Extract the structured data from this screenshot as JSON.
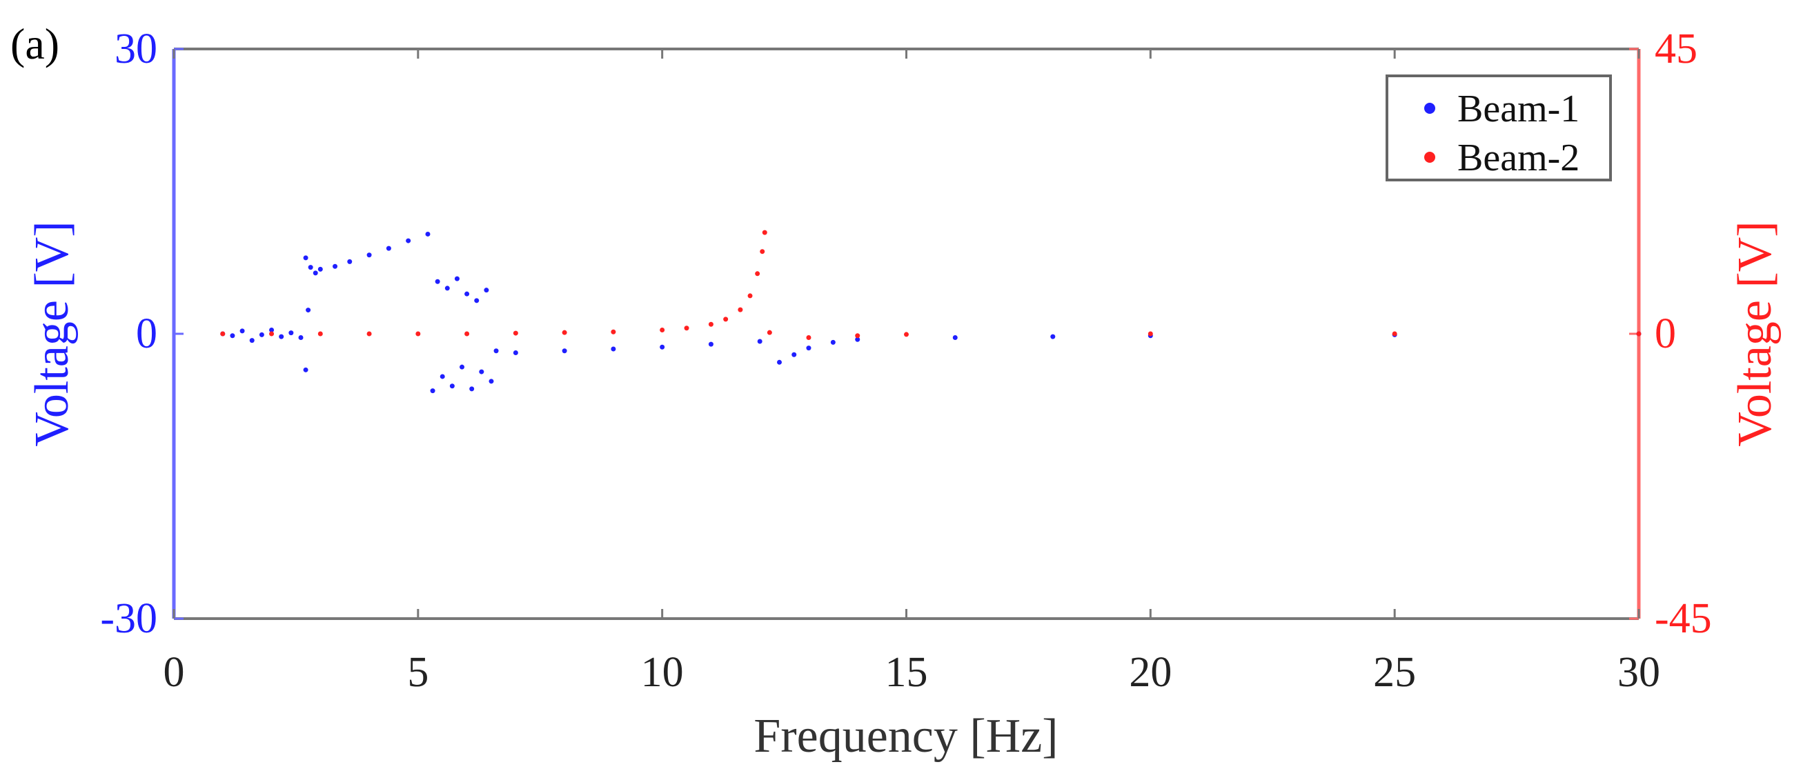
{
  "panel_label": "(a)",
  "chart_data": {
    "type": "scatter",
    "title": "",
    "xlabel": "Frequency [Hz]",
    "ylabel_left": "Voltage [V]",
    "ylabel_right": "Voltage [V]",
    "xlim": [
      0,
      30
    ],
    "ylim_left": [
      -30,
      30
    ],
    "ylim_right": [
      -45,
      45
    ],
    "x_ticks": [
      "0",
      "5",
      "10",
      "15",
      "20",
      "25",
      "30"
    ],
    "y_ticks_left": [
      "30",
      "0",
      "-30"
    ],
    "y_ticks_right": [
      "45",
      "0",
      "-45"
    ],
    "grid": false,
    "legend_position": "top-right",
    "colors": {
      "beam1": "#1f1fff",
      "beam2": "#ff2020",
      "x_axis": "#777777",
      "left_axis": "#6a6aff",
      "right_axis": "#ff6a6a"
    },
    "series": [
      {
        "name": "Beam-1",
        "axis": "left",
        "color": "#1f1fff",
        "points": [
          {
            "x": 1.0,
            "y": 0.0
          },
          {
            "x": 1.2,
            "y": -0.2
          },
          {
            "x": 1.4,
            "y": 0.3
          },
          {
            "x": 1.6,
            "y": -0.7
          },
          {
            "x": 1.8,
            "y": -0.1
          },
          {
            "x": 2.0,
            "y": 0.4
          },
          {
            "x": 2.2,
            "y": -0.3
          },
          {
            "x": 2.4,
            "y": 0.1
          },
          {
            "x": 2.6,
            "y": -0.4
          },
          {
            "x": 2.7,
            "y": -3.8
          },
          {
            "x": 2.7,
            "y": 8.0
          },
          {
            "x": 2.75,
            "y": 2.5
          },
          {
            "x": 2.8,
            "y": 7.0
          },
          {
            "x": 2.9,
            "y": 6.4
          },
          {
            "x": 3.0,
            "y": 6.8
          },
          {
            "x": 3.3,
            "y": 7.1
          },
          {
            "x": 3.6,
            "y": 7.6
          },
          {
            "x": 4.0,
            "y": 8.3
          },
          {
            "x": 4.4,
            "y": 9.0
          },
          {
            "x": 4.8,
            "y": 9.8
          },
          {
            "x": 5.2,
            "y": 10.5
          },
          {
            "x": 5.3,
            "y": -6.0
          },
          {
            "x": 5.4,
            "y": 5.5
          },
          {
            "x": 5.5,
            "y": -4.5
          },
          {
            "x": 5.6,
            "y": 4.8
          },
          {
            "x": 5.7,
            "y": -5.5
          },
          {
            "x": 5.8,
            "y": 5.8
          },
          {
            "x": 5.9,
            "y": -3.5
          },
          {
            "x": 6.0,
            "y": 4.2
          },
          {
            "x": 6.1,
            "y": -5.8
          },
          {
            "x": 6.2,
            "y": 3.5
          },
          {
            "x": 6.3,
            "y": -4.0
          },
          {
            "x": 6.4,
            "y": 4.6
          },
          {
            "x": 6.5,
            "y": -5.0
          },
          {
            "x": 6.6,
            "y": -1.8
          },
          {
            "x": 7.0,
            "y": -2.0
          },
          {
            "x": 8.0,
            "y": -1.8
          },
          {
            "x": 9.0,
            "y": -1.6
          },
          {
            "x": 10.0,
            "y": -1.4
          },
          {
            "x": 11.0,
            "y": -1.1
          },
          {
            "x": 12.0,
            "y": -0.8
          },
          {
            "x": 12.4,
            "y": -3.0
          },
          {
            "x": 12.7,
            "y": -2.2
          },
          {
            "x": 13.0,
            "y": -1.5
          },
          {
            "x": 13.5,
            "y": -0.9
          },
          {
            "x": 14.0,
            "y": -0.6
          },
          {
            "x": 16.0,
            "y": -0.4
          },
          {
            "x": 18.0,
            "y": -0.3
          },
          {
            "x": 20.0,
            "y": -0.2
          },
          {
            "x": 25.0,
            "y": -0.1
          },
          {
            "x": 30.0,
            "y": 0.0
          }
        ]
      },
      {
        "name": "Beam-2",
        "axis": "right",
        "color": "#ff2020",
        "points": [
          {
            "x": 1.0,
            "y": 0.0
          },
          {
            "x": 2.0,
            "y": 0.0
          },
          {
            "x": 3.0,
            "y": 0.0
          },
          {
            "x": 4.0,
            "y": 0.0
          },
          {
            "x": 5.0,
            "y": 0.0
          },
          {
            "x": 6.0,
            "y": 0.0
          },
          {
            "x": 7.0,
            "y": 0.1
          },
          {
            "x": 8.0,
            "y": 0.2
          },
          {
            "x": 9.0,
            "y": 0.3
          },
          {
            "x": 10.0,
            "y": 0.6
          },
          {
            "x": 10.5,
            "y": 0.9
          },
          {
            "x": 11.0,
            "y": 1.5
          },
          {
            "x": 11.3,
            "y": 2.3
          },
          {
            "x": 11.6,
            "y": 3.8
          },
          {
            "x": 11.8,
            "y": 6.0
          },
          {
            "x": 11.95,
            "y": 9.5
          },
          {
            "x": 12.05,
            "y": 13.0
          },
          {
            "x": 12.1,
            "y": 16.0
          },
          {
            "x": 12.2,
            "y": 0.2
          },
          {
            "x": 13.0,
            "y": -0.6
          },
          {
            "x": 14.0,
            "y": -0.3
          },
          {
            "x": 15.0,
            "y": -0.1
          },
          {
            "x": 20.0,
            "y": 0.0
          },
          {
            "x": 25.0,
            "y": 0.0
          },
          {
            "x": 30.0,
            "y": 0.0
          }
        ]
      }
    ]
  }
}
